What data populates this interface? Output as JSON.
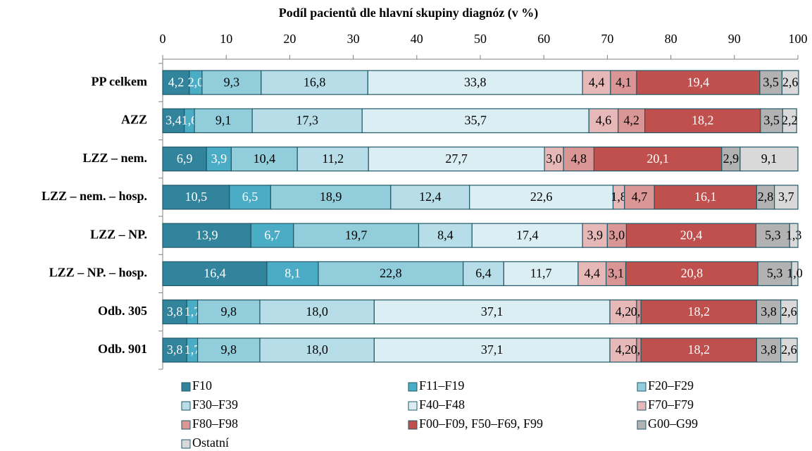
{
  "chart_data": {
    "type": "stacked-bar-horizontal",
    "title": "Podíl pacientů dle hlavní skupiny diagnóz (v %)",
    "categories": [
      "PP celkem",
      "AZZ",
      "LZZ – nem.",
      "LZZ – nem. – hosp.",
      "LZZ – NP.",
      "LZZ – NP. – hosp.",
      "Odb. 305",
      "Odb. 901"
    ],
    "xlim": [
      0,
      100
    ],
    "xticks": [
      0,
      10,
      20,
      30,
      40,
      50,
      60,
      70,
      80,
      90,
      100
    ],
    "series": [
      {
        "name": "F10",
        "color": "#31849b",
        "text_color": "#ffffff",
        "values": [
          4.2,
          3.4,
          6.9,
          10.5,
          13.9,
          16.4,
          3.8,
          3.8
        ],
        "value_labels": [
          "4,2",
          "3,4",
          "6,9",
          "10,5",
          "13,9",
          "16,4",
          "3,8",
          "3,8"
        ]
      },
      {
        "name": "F11–F19",
        "color": "#4bacc6",
        "text_color": "#ffffff",
        "values": [
          2.0,
          1.6,
          3.9,
          6.5,
          6.7,
          8.1,
          1.7,
          1.7
        ],
        "value_labels": [
          "2,0",
          "1,6",
          "3,9",
          "6,5",
          "6,7",
          "8,1",
          "1,7",
          "1,7"
        ]
      },
      {
        "name": "F20–F29",
        "color": "#92cddc",
        "text_color": "#000000",
        "values": [
          9.3,
          9.1,
          10.4,
          18.9,
          19.7,
          22.8,
          9.8,
          9.8
        ],
        "value_labels": [
          "9,3",
          "9,1",
          "10,4",
          "18,9",
          "19,7",
          "22,8",
          "9,8",
          "9,8"
        ]
      },
      {
        "name": "F30–F39",
        "color": "#b7dee8",
        "text_color": "#000000",
        "values": [
          16.8,
          17.3,
          11.2,
          12.4,
          8.4,
          6.4,
          18.0,
          18.0
        ],
        "value_labels": [
          "16,8",
          "17,3",
          "11,2",
          "12,4",
          "8,4",
          "6,4",
          "18,0",
          "18,0"
        ]
      },
      {
        "name": "F40–F48",
        "color": "#dbeef3",
        "text_color": "#000000",
        "values": [
          33.8,
          35.7,
          27.7,
          22.6,
          17.4,
          11.7,
          37.1,
          37.1
        ],
        "value_labels": [
          "33,8",
          "35,7",
          "27,7",
          "22,6",
          "17,4",
          "11,7",
          "37,1",
          "37,1"
        ]
      },
      {
        "name": "F70–F79",
        "color": "#e6b9b8",
        "text_color": "#000000",
        "values": [
          4.4,
          4.6,
          3.0,
          1.8,
          3.9,
          4.4,
          4.2,
          4.2
        ],
        "value_labels": [
          "4,4",
          "4,6",
          "3,0",
          "1,8",
          "3,9",
          "4,4",
          "4,2",
          "4,2"
        ]
      },
      {
        "name": "F80–F98",
        "color": "#da9694",
        "text_color": "#000000",
        "values": [
          4.1,
          4.2,
          4.8,
          4.7,
          3.0,
          3.1,
          0.7,
          0.7
        ],
        "value_labels": [
          "4,1",
          "4,2",
          "4,8",
          "4,7",
          "3,0",
          "3,1",
          "0,7",
          "0,7"
        ]
      },
      {
        "name": "F00–F09, F50–F69, F99",
        "color": "#c0504d",
        "text_color": "#ffffff",
        "values": [
          19.4,
          18.2,
          20.1,
          16.1,
          20.4,
          20.8,
          18.2,
          18.2
        ],
        "value_labels": [
          "19,4",
          "18,2",
          "20,1",
          "16,1",
          "20,4",
          "20,8",
          "18,2",
          "18,2"
        ]
      },
      {
        "name": "G00–G99",
        "color": "#b2b2b2",
        "text_color": "#000000",
        "values": [
          3.5,
          3.5,
          2.9,
          2.8,
          5.3,
          5.3,
          3.8,
          3.8
        ],
        "value_labels": [
          "3,5",
          "3,5",
          "2,9",
          "2,8",
          "5,3",
          "5,3",
          "3,8",
          "3,8"
        ]
      },
      {
        "name": "Ostatní",
        "color": "#d9d9d9",
        "text_color": "#000000",
        "values": [
          2.6,
          2.2,
          9.1,
          3.7,
          1.3,
          1.0,
          2.6,
          2.6
        ],
        "value_labels": [
          "2,6",
          "2,2",
          "9,1",
          "3,7",
          "1,3",
          "1,0",
          "2,6",
          "2,6"
        ]
      }
    ]
  }
}
